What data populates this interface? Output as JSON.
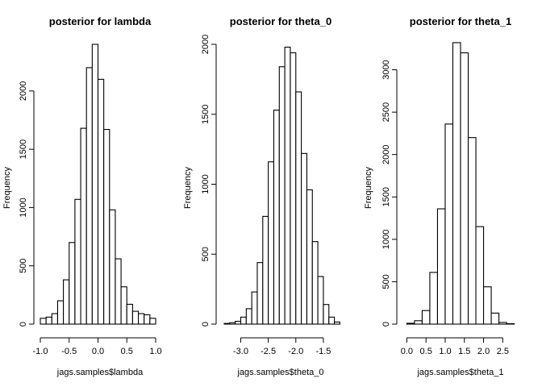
{
  "chart_data": [
    {
      "type": "histogram",
      "title": "posterior for lambda",
      "xlabel": "jags.samples$lambda",
      "ylabel": "Frequency",
      "xlim": [
        -1.0,
        1.0
      ],
      "ylim": [
        0,
        2400
      ],
      "xticks": [
        -1.0,
        -0.5,
        0.0,
        0.5,
        1.0
      ],
      "xtick_labels": [
        "-1.0",
        "-0.5",
        "0.0",
        "0.5",
        "1.0"
      ],
      "yticks": [
        0,
        500,
        1000,
        1500,
        2000
      ],
      "ytick_labels": [
        "0",
        "500",
        "1000",
        "1500",
        "2000"
      ],
      "bin_start": -1.0,
      "bin_width": 0.1,
      "counts": [
        50,
        60,
        90,
        200,
        380,
        700,
        1070,
        1680,
        2200,
        2400,
        2100,
        1670,
        980,
        560,
        320,
        170,
        110,
        90,
        80,
        50
      ]
    },
    {
      "type": "histogram",
      "title": "posterior for theta_0",
      "xlabel": "jags.samples$theta_0",
      "ylabel": "Frequency",
      "xlim": [
        -3.3,
        -1.25
      ],
      "ylim": [
        0,
        2000
      ],
      "xticks": [
        -3.0,
        -2.5,
        -2.0,
        -1.5
      ],
      "xtick_labels": [
        "-3.0",
        "-2.5",
        "-2.0",
        "-1.5"
      ],
      "yticks": [
        0,
        500,
        1000,
        1500,
        2000
      ],
      "ytick_labels": [
        "0",
        "500",
        "1000",
        "1500",
        "2000"
      ],
      "bin_start": -3.3,
      "bin_width": 0.1,
      "counts": [
        5,
        10,
        20,
        50,
        110,
        230,
        440,
        770,
        1160,
        1530,
        1840,
        1980,
        1940,
        1660,
        1220,
        960,
        590,
        340,
        140,
        50,
        15
      ]
    },
    {
      "type": "histogram",
      "title": "posterior for theta_1",
      "xlabel": "jags.samples$theta_1",
      "ylabel": "Frequency",
      "xlim": [
        -0.05,
        2.85
      ],
      "ylim": [
        0,
        3300
      ],
      "xticks": [
        0.0,
        0.5,
        1.0,
        1.5,
        2.0,
        2.5
      ],
      "xtick_labels": [
        "0.0",
        "0.5",
        "1.0",
        "1.5",
        "2.0",
        "2.5"
      ],
      "yticks": [
        0,
        500,
        1000,
        1500,
        2000,
        2500,
        3000
      ],
      "ytick_labels": [
        "0",
        "500",
        "1000",
        "1500",
        "2000",
        "2500",
        "3000"
      ],
      "bin_start": 0.0,
      "bin_width": 0.2,
      "counts": [
        10,
        40,
        160,
        610,
        1360,
        2360,
        3320,
        3200,
        2200,
        1150,
        440,
        130,
        20,
        5
      ]
    }
  ]
}
